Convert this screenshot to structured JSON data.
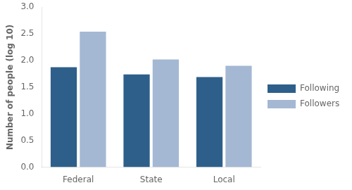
{
  "chart_data": {
    "type": "bar",
    "categories": [
      "Federal",
      "State",
      "Local"
    ],
    "series": [
      {
        "name": "Following",
        "color": "#2E5F8A",
        "values": [
          1.875,
          1.74,
          1.69
        ]
      },
      {
        "name": "Followers",
        "color": "#A4B8D3",
        "values": [
          2.54,
          2.02,
          1.9
        ]
      }
    ],
    "ylabel": "Number of people (log 10)",
    "ylim": [
      0,
      3.0
    ],
    "yticks": [
      {
        "value": 0,
        "label": "0.0"
      },
      0.5,
      {
        "value": 1.0,
        "label": "1.0"
      },
      1.5,
      {
        "value": 2.0,
        "label": "2.0"
      },
      2.5,
      {
        "value": 3.0,
        "label": "3.0"
      }
    ],
    "grid": false,
    "legend": "right"
  }
}
